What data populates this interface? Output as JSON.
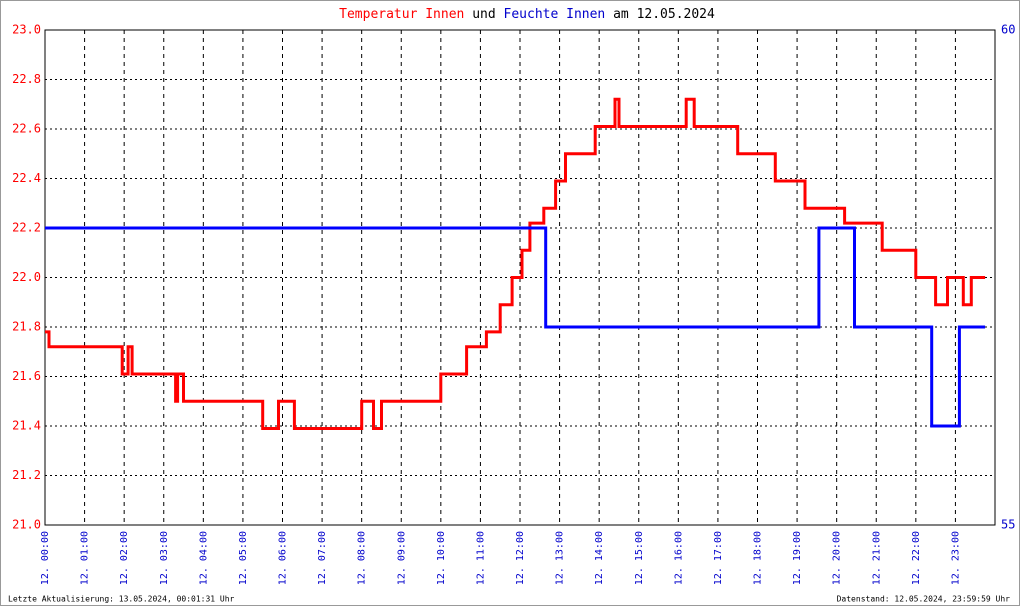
{
  "chart_data": {
    "type": "line",
    "title_connector": "und",
    "title_suffix": "am 12.05.2024",
    "footer_left": "Letzte Aktualisierung: 13.05.2024, 00:01:31 Uhr",
    "footer_right": "Datenstand: 12.05.2024, 23:59:59 Uhr",
    "xlim": [
      0,
      24
    ],
    "xticks": [
      {
        "value": 0,
        "label": "12. 00:00"
      },
      {
        "value": 1,
        "label": "12. 01:00"
      },
      {
        "value": 2,
        "label": "12. 02:00"
      },
      {
        "value": 3,
        "label": "12. 03:00"
      },
      {
        "value": 4,
        "label": "12. 04:00"
      },
      {
        "value": 5,
        "label": "12. 05:00"
      },
      {
        "value": 6,
        "label": "12. 06:00"
      },
      {
        "value": 7,
        "label": "12. 07:00"
      },
      {
        "value": 8,
        "label": "12. 08:00"
      },
      {
        "value": 9,
        "label": "12. 09:00"
      },
      {
        "value": 10,
        "label": "12. 10:00"
      },
      {
        "value": 11,
        "label": "12. 11:00"
      },
      {
        "value": 12,
        "label": "12. 12:00"
      },
      {
        "value": 13,
        "label": "12. 13:00"
      },
      {
        "value": 14,
        "label": "12. 14:00"
      },
      {
        "value": 15,
        "label": "12. 15:00"
      },
      {
        "value": 16,
        "label": "12. 16:00"
      },
      {
        "value": 17,
        "label": "12. 17:00"
      },
      {
        "value": 18,
        "label": "12. 18:00"
      },
      {
        "value": 19,
        "label": "12. 19:00"
      },
      {
        "value": 20,
        "label": "12. 20:00"
      },
      {
        "value": 21,
        "label": "12. 21:00"
      },
      {
        "value": 22,
        "label": "12. 22:00"
      },
      {
        "value": 23,
        "label": "12. 23:00"
      }
    ],
    "ylim": [
      21,
      23
    ],
    "yticks": [
      {
        "value": 21,
        "label": "21.0"
      },
      21.2,
      21.4,
      21.6,
      21.8,
      {
        "value": 22,
        "label": "22.0"
      },
      22.2,
      22.4,
      22.6,
      22.8,
      {
        "value": 23,
        "label": "23.0"
      }
    ],
    "y2lim": [
      55,
      60
    ],
    "y2ticks": [
      55,
      60
    ],
    "grid": true,
    "series": [
      {
        "name": "Temperatur Innen",
        "color": "#ff0000",
        "x": [
          0,
          0.1,
          0.1,
          1.95,
          1.95,
          2.1,
          2.1,
          2.2,
          2.2,
          3.3,
          3.3,
          3.35,
          3.35,
          3.5,
          3.5,
          5.5,
          5.5,
          5.9,
          5.9,
          6.3,
          6.3,
          8.0,
          8.0,
          8.3,
          8.3,
          8.5,
          8.5,
          10.0,
          10.0,
          10.65,
          10.65,
          11.15,
          11.15,
          11.5,
          11.5,
          11.8,
          11.8,
          12.05,
          12.05,
          12.25,
          12.25,
          12.6,
          12.6,
          12.9,
          12.9,
          13.15,
          13.15,
          13.9,
          13.9,
          14.4,
          14.4,
          14.5,
          14.5,
          16.2,
          16.2,
          16.4,
          16.4,
          17.5,
          17.5,
          18.45,
          18.45,
          19.2,
          19.2,
          20.2,
          20.2,
          21.15,
          21.15,
          22.0,
          22.0,
          22.5,
          22.5,
          22.8,
          22.8,
          23.2,
          23.2,
          23.4,
          23.4,
          23.75
        ],
        "values": [
          21.78,
          21.78,
          21.72,
          21.72,
          21.61,
          21.61,
          21.72,
          21.72,
          21.61,
          21.61,
          21.5,
          21.5,
          21.61,
          21.61,
          21.5,
          21.5,
          21.39,
          21.39,
          21.5,
          21.5,
          21.39,
          21.39,
          21.5,
          21.5,
          21.39,
          21.39,
          21.5,
          21.5,
          21.61,
          21.61,
          21.72,
          21.72,
          21.78,
          21.78,
          21.89,
          21.89,
          22.0,
          22.0,
          22.11,
          22.11,
          22.22,
          22.22,
          22.28,
          22.28,
          22.39,
          22.39,
          22.5,
          22.5,
          22.61,
          22.61,
          22.72,
          22.72,
          22.61,
          22.61,
          22.72,
          22.72,
          22.61,
          22.61,
          22.5,
          22.5,
          22.39,
          22.39,
          22.28,
          22.28,
          22.22,
          22.22,
          22.11,
          22.11,
          22.0,
          22.0,
          21.89,
          21.89,
          22.0,
          22.0,
          21.89,
          21.89,
          22.0,
          22.0
        ]
      },
      {
        "name": "Feuchte Innen",
        "color": "#0000ff",
        "axis": "y2",
        "x": [
          0,
          12.65,
          12.65,
          19.55,
          19.55,
          20.45,
          20.45,
          22.4,
          22.4,
          23.1,
          23.1,
          23.75
        ],
        "values": [
          58,
          58,
          57,
          57,
          58,
          58,
          57,
          57,
          56,
          56,
          57,
          57
        ]
      }
    ]
  }
}
